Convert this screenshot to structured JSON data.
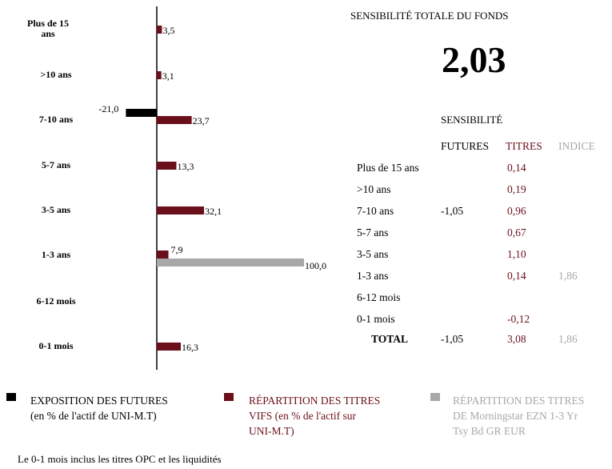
{
  "chart_data": {
    "type": "bar",
    "orientation": "horizontal",
    "categories": [
      "Plus de 15 ans",
      ">10 ans",
      "7-10 ans",
      "5-7 ans",
      "3-5 ans",
      "1-3 ans",
      "6-12 mois",
      "0-1 mois"
    ],
    "series": [
      {
        "name": "EXPOSITION DES FUTURES",
        "color": "#000000",
        "values": [
          null,
          null,
          -21.0,
          null,
          null,
          null,
          null,
          null
        ],
        "labels": [
          "",
          "",
          "-21,0",
          "",
          "",
          "",
          "",
          ""
        ]
      },
      {
        "name": "RÉPARTITION DES TITRES VIFS",
        "color": "#6b0f1a",
        "values": [
          3.5,
          3.1,
          23.7,
          13.3,
          32.1,
          7.9,
          null,
          16.3
        ],
        "labels": [
          "3,5",
          "3,1",
          "23,7",
          "13,3",
          "32,1",
          "7,9",
          "",
          "16,3"
        ]
      },
      {
        "name": "RÉPARTITION DES TITRES DE Morningstar EZN 1-3 Yr Tsy Bd GR EUR",
        "color": "#a8a8a8",
        "values": [
          null,
          null,
          null,
          null,
          null,
          100.0,
          null,
          null
        ],
        "labels": [
          "",
          "",
          "",
          "",
          "",
          "100,0",
          "",
          ""
        ]
      }
    ]
  },
  "category_labels": [
    [
      "Plus de 15",
      "ans"
    ],
    [
      ">10 ans"
    ],
    [
      "7-10 ans"
    ],
    [
      "5-7 ans"
    ],
    [
      "3-5 ans"
    ],
    [
      "1-3 ans"
    ],
    [
      "6-12 mois"
    ],
    [
      "0-1 mois"
    ]
  ],
  "sensitivity": {
    "title": "SENSIBILITÉ TOTALE DU FONDS",
    "value": "2,03",
    "subtitle": "SENSIBILITÉ",
    "col_futures": "FUTURES",
    "col_titres": "TITRES",
    "col_indice": "INDICE",
    "rows": [
      {
        "label": "Plus de 15 ans",
        "futures": "",
        "titres": "0,14",
        "indice": ""
      },
      {
        "label": ">10 ans",
        "futures": "",
        "titres": "0,19",
        "indice": ""
      },
      {
        "label": "7-10 ans",
        "futures": "-1,05",
        "titres": "0,96",
        "indice": ""
      },
      {
        "label": "5-7 ans",
        "futures": "",
        "titres": "0,67",
        "indice": ""
      },
      {
        "label": "3-5 ans",
        "futures": "",
        "titres": "1,10",
        "indice": ""
      },
      {
        "label": "1-3 ans",
        "futures": "",
        "titres": "0,14",
        "indice": "1,86"
      },
      {
        "label": "6-12 mois",
        "futures": "",
        "titres": "",
        "indice": ""
      },
      {
        "label": "0-1 mois",
        "futures": "",
        "titres": "-0,12",
        "indice": ""
      }
    ],
    "total": {
      "label": "TOTAL",
      "futures": "-1,05",
      "titres": "3,08",
      "indice": "1,86"
    }
  },
  "legend": {
    "futures": [
      "EXPOSITION DES FUTURES",
      "(en % de l'actif de UNI-M.T)"
    ],
    "titres": [
      "RÉPARTITION DES TITRES",
      "VIFS  (en % de l'actif sur",
      "UNI-M.T)"
    ],
    "indice": [
      "RÉPARTITION DES TITRES",
      "DE Morningstar EZN 1-3 Yr",
      "Tsy Bd GR EUR"
    ]
  },
  "colors": {
    "futures": "#000000",
    "titres": "#6b0f1a",
    "indice": "#a8a8a8"
  },
  "footnote": "Le 0-1 mois inclus les titres OPC et les liquidités"
}
